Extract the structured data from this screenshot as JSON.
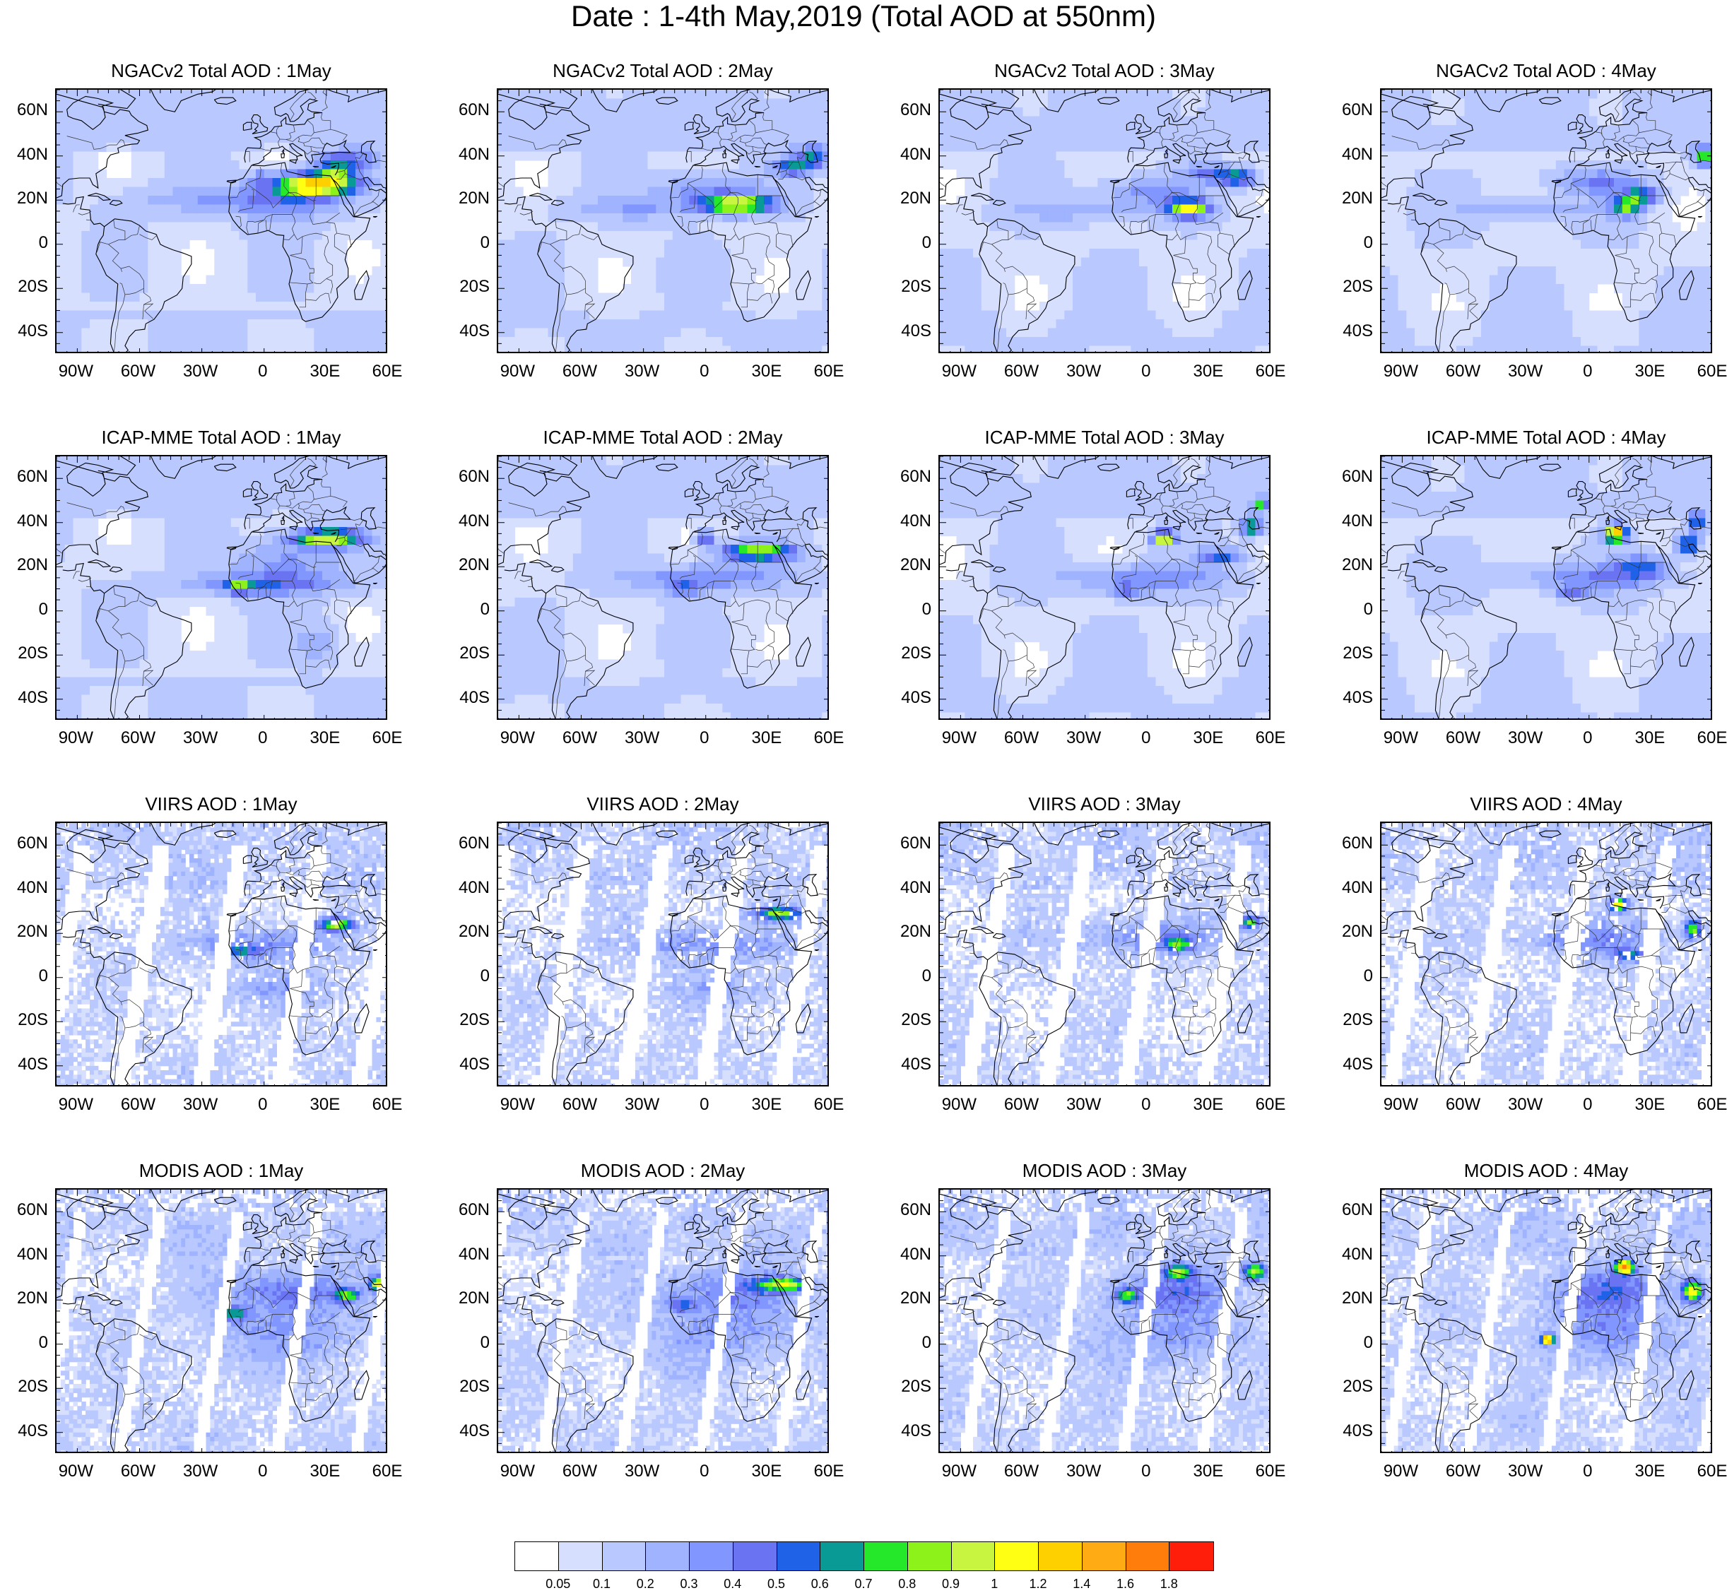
{
  "title": "Date : 1-4th May,2019 (Total AOD at 550nm)",
  "lat_ticks": [
    "60N",
    "40N",
    "20N",
    "0",
    "20S",
    "40S"
  ],
  "lon_ticks": [
    "90W",
    "60W",
    "30W",
    "0",
    "30E",
    "60E"
  ],
  "panels": [
    {
      "title": "NGACv2 Total AOD : 1May",
      "model": "NGACv2",
      "day": 1
    },
    {
      "title": "NGACv2 Total AOD : 2May",
      "model": "NGACv2",
      "day": 2
    },
    {
      "title": "NGACv2 Total AOD : 3May",
      "model": "NGACv2",
      "day": 3
    },
    {
      "title": "NGACv2 Total AOD : 4May",
      "model": "NGACv2",
      "day": 4
    },
    {
      "title": "ICAP-MME Total AOD : 1May",
      "model": "ICAP",
      "day": 1
    },
    {
      "title": "ICAP-MME Total AOD : 2May",
      "model": "ICAP",
      "day": 2
    },
    {
      "title": "ICAP-MME Total AOD : 3May",
      "model": "ICAP",
      "day": 3
    },
    {
      "title": "ICAP-MME Total AOD : 4May",
      "model": "ICAP",
      "day": 4
    },
    {
      "title": "VIIRS AOD : 1May",
      "model": "VIIRS",
      "day": 1
    },
    {
      "title": "VIIRS AOD : 2May",
      "model": "VIIRS",
      "day": 2
    },
    {
      "title": "VIIRS AOD : 3May",
      "model": "VIIRS",
      "day": 3
    },
    {
      "title": "VIIRS AOD : 4May",
      "model": "VIIRS",
      "day": 4
    },
    {
      "title": "MODIS AOD : 1May",
      "model": "MODIS",
      "day": 1
    },
    {
      "title": "MODIS AOD : 2May",
      "model": "MODIS",
      "day": 2
    },
    {
      "title": "MODIS AOD : 3May",
      "model": "MODIS",
      "day": 3
    },
    {
      "title": "MODIS AOD : 4May",
      "model": "MODIS",
      "day": 4
    }
  ],
  "colorbar": {
    "colors": [
      "#ffffff",
      "#d7dfff",
      "#b9c8ff",
      "#9fb3ff",
      "#8296ff",
      "#6a74f2",
      "#1f62e8",
      "#0a9a96",
      "#26e82a",
      "#8cf21a",
      "#c8f540",
      "#ffff14",
      "#ffd000",
      "#ffac14",
      "#ff7d0a",
      "#ff1e0a"
    ],
    "labels": [
      "0.05",
      "0.1",
      "0.2",
      "0.3",
      "0.4",
      "0.5",
      "0.6",
      "0.7",
      "0.8",
      "0.9",
      "1",
      "1.2",
      "1.4",
      "1.6",
      "1.8"
    ]
  }
}
